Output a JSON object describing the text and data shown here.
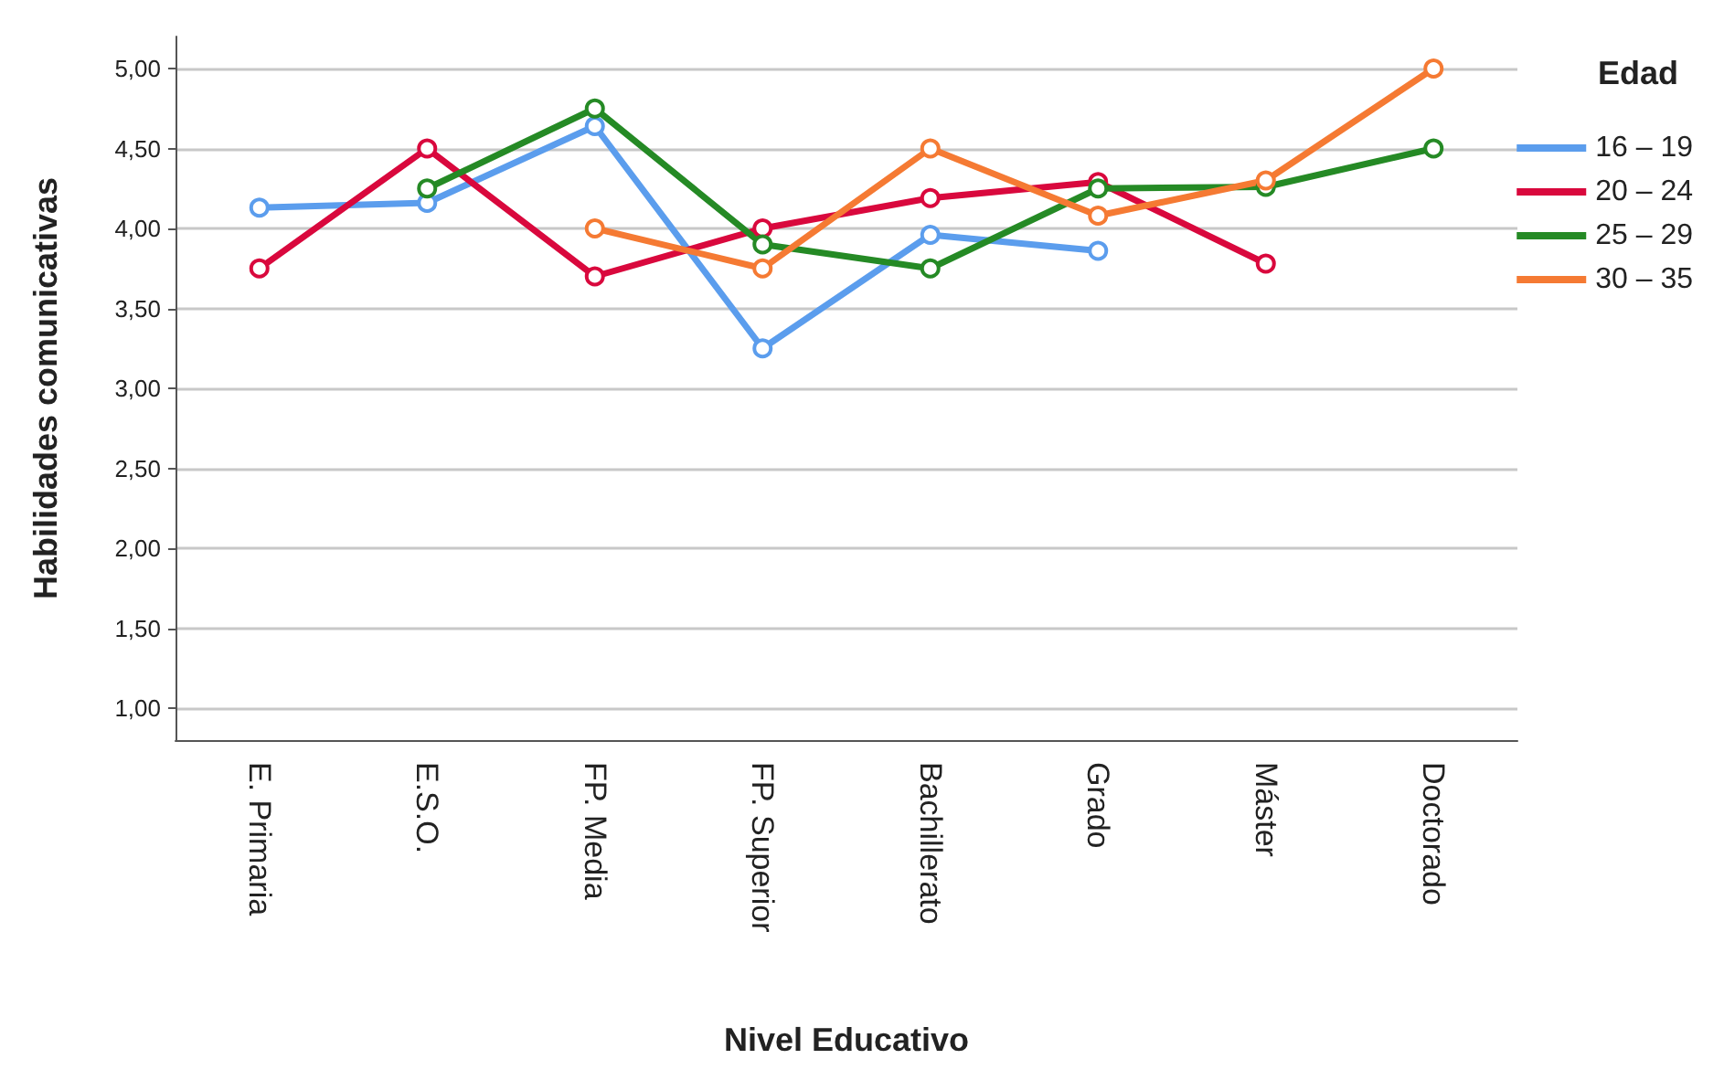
{
  "chart_data": {
    "type": "line",
    "xlabel": "Nivel Educativo",
    "ylabel": "Habilidades comunicativas",
    "legend_title": "Edad",
    "legend": "right",
    "grid": "y",
    "marker": "circle",
    "line_style": "solid",
    "categories": [
      "E. Primaria",
      "E.S.O.",
      "FP. Media",
      "FP. Superior",
      "Bachillerato",
      "Grado",
      "Máster",
      "Doctorado"
    ],
    "ylim": [
      0.8,
      5.2
    ],
    "yticks": [
      {
        "value": 1,
        "label": "1,00"
      },
      {
        "value": 1.5,
        "label": "1,50"
      },
      {
        "value": 2,
        "label": "2,00"
      },
      {
        "value": 2.5,
        "label": "2,50"
      },
      {
        "value": 3,
        "label": "3,00"
      },
      {
        "value": 3.5,
        "label": "3,50"
      },
      {
        "value": 4,
        "label": "4,00"
      },
      {
        "value": 4.5,
        "label": "4,50"
      },
      {
        "value": 5,
        "label": "5,00"
      }
    ],
    "series": [
      {
        "name": "16 – 19",
        "color": "#5b9ded",
        "values": [
          4.13,
          4.16,
          4.64,
          3.25,
          3.96,
          3.86,
          null,
          null
        ]
      },
      {
        "name": "20 – 24",
        "color": "#d9083d",
        "values": [
          3.75,
          4.5,
          3.7,
          4.0,
          4.19,
          4.29,
          3.78,
          null
        ]
      },
      {
        "name": "25 – 29",
        "color": "#258a25",
        "values": [
          null,
          4.25,
          4.75,
          3.9,
          3.75,
          4.25,
          4.26,
          4.5
        ]
      },
      {
        "name": "30 – 35",
        "color": "#f57a33",
        "values": [
          null,
          null,
          4.0,
          3.75,
          4.5,
          4.08,
          4.3,
          5.0
        ]
      }
    ]
  }
}
